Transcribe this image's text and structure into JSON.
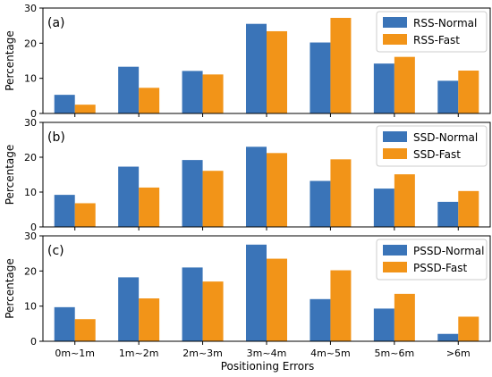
{
  "xlabel": "Positioning Errors",
  "colors": {
    "normal": "#3a74b8",
    "fast": "#f29418",
    "axis": "#000000"
  },
  "chart_data": [
    {
      "type": "bar",
      "tag": "(a)",
      "ylabel": "Percentage",
      "ylim": [
        0,
        30
      ],
      "yticks": [
        "0",
        "10",
        "20",
        "30"
      ],
      "legend_position": "top-right",
      "categories": [
        "0m~1m",
        "1m~2m",
        "2m~3m",
        "3m~4m",
        "4m~5m",
        "5m~6m",
        ">6m"
      ],
      "series": [
        {
          "name": "RSS-Normal",
          "values": [
            5.3,
            13.3,
            12.1,
            25.5,
            20.2,
            14.2,
            9.3
          ]
        },
        {
          "name": "RSS-Fast",
          "values": [
            2.5,
            7.3,
            11.1,
            23.4,
            27.2,
            16.1,
            12.2
          ]
        }
      ]
    },
    {
      "type": "bar",
      "tag": "(b)",
      "ylabel": "Percentage",
      "ylim": [
        0,
        30
      ],
      "yticks": [
        "0",
        "10",
        "20",
        "30"
      ],
      "legend_position": "top-right",
      "categories": [
        "0m~1m",
        "1m~2m",
        "2m~3m",
        "3m~4m",
        "4m~5m",
        "5m~6m",
        ">6m"
      ],
      "series": [
        {
          "name": "SSD-Normal",
          "values": [
            9.2,
            17.3,
            19.2,
            23.0,
            13.2,
            11.0,
            7.2
          ]
        },
        {
          "name": "SSD-Fast",
          "values": [
            6.8,
            11.3,
            16.1,
            21.2,
            19.4,
            15.1,
            10.3
          ]
        }
      ]
    },
    {
      "type": "bar",
      "tag": "(c)",
      "ylabel": "Percentage",
      "ylim": [
        0,
        30
      ],
      "yticks": [
        "0",
        "10",
        "20",
        "30"
      ],
      "legend_position": "top-right",
      "categories": [
        "0m~1m",
        "1m~2m",
        "2m~3m",
        "3m~4m",
        "4m~5m",
        "5m~6m",
        ">6m"
      ],
      "series": [
        {
          "name": "PSSD-Normal",
          "values": [
            9.7,
            18.2,
            21.0,
            27.5,
            12.0,
            9.3,
            2.1
          ]
        },
        {
          "name": "PSSD-Fast",
          "values": [
            6.3,
            12.2,
            17.0,
            23.5,
            20.2,
            13.5,
            7.0
          ]
        }
      ]
    }
  ]
}
